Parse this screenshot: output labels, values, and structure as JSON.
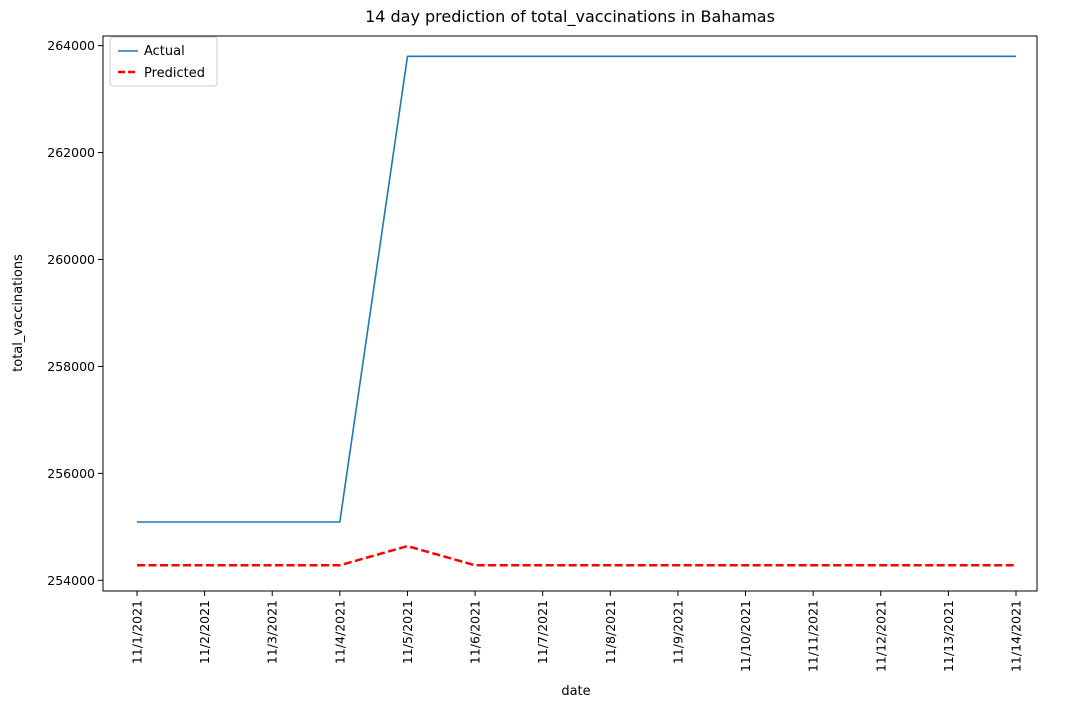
{
  "chart_data": {
    "type": "line",
    "title": "14 day prediction of total_vaccinations in Bahamas",
    "xlabel": "date",
    "ylabel": "total_vaccinations",
    "categories": [
      "11/1/2021",
      "11/2/2021",
      "11/3/2021",
      "11/4/2021",
      "11/5/2021",
      "11/6/2021",
      "11/7/2021",
      "11/8/2021",
      "11/9/2021",
      "11/10/2021",
      "11/11/2021",
      "11/12/2021",
      "11/13/2021",
      "11/14/2021"
    ],
    "yticks": [
      "254000",
      "256000",
      "258000",
      "260000",
      "262000",
      "264000"
    ],
    "ytick_values": [
      254000,
      256000,
      258000,
      260000,
      262000,
      264000
    ],
    "ylim": [
      253800,
      264180
    ],
    "grid": false,
    "legend_position": "top-left",
    "series": [
      {
        "name": "Actual",
        "color": "#1f77b4",
        "style": "solid",
        "values": [
          255090,
          255090,
          255090,
          255090,
          263800,
          263800,
          263800,
          263800,
          263800,
          263800,
          263800,
          263800,
          263800,
          263800
        ]
      },
      {
        "name": "Predicted",
        "color": "#ff0000",
        "style": "dashed",
        "values": [
          254280,
          254280,
          254280,
          254280,
          254640,
          254280,
          254280,
          254280,
          254280,
          254280,
          254280,
          254280,
          254280,
          254280
        ]
      }
    ]
  }
}
